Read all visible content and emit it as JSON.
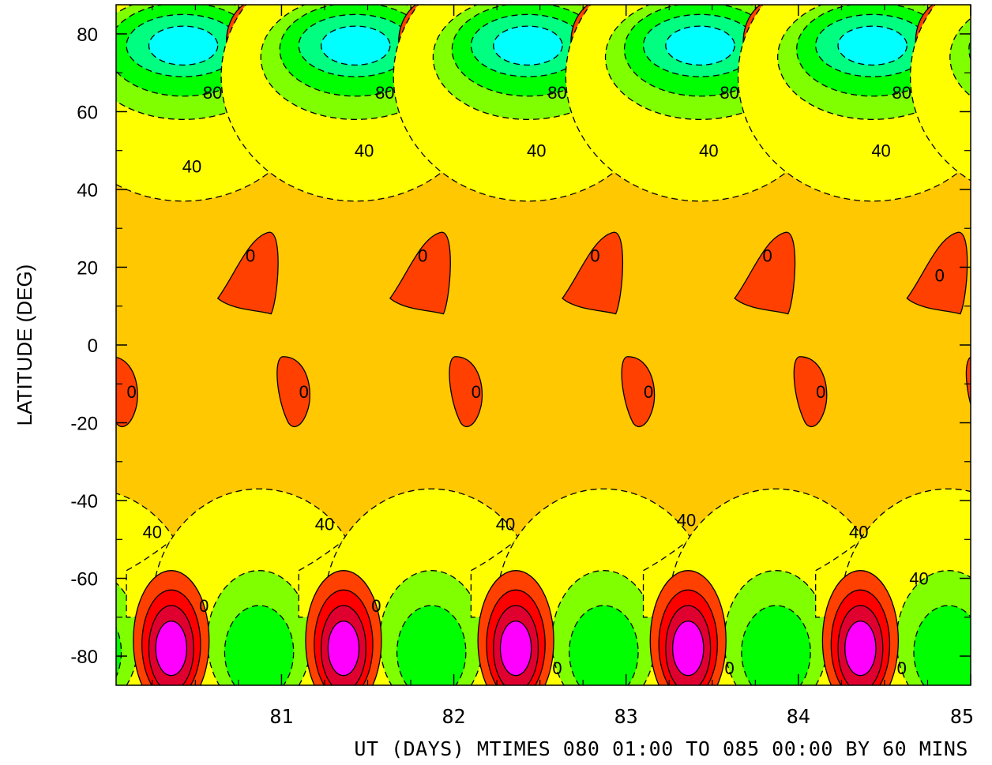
{
  "chart_data": {
    "type": "heatmap",
    "title": "",
    "xlabel": "UT (DAYS) MTIMES 080 01:00 TO 085 00:00 BY   60 MINS",
    "ylabel": "LATITUDE (DEG)",
    "xlim": [
      80.04,
      85.0
    ],
    "ylim": [
      -87.5,
      87.5
    ],
    "x_ticks": [
      {
        "value": 81,
        "label": "81"
      },
      {
        "value": 82,
        "label": "82"
      },
      {
        "value": 83,
        "label": "83"
      },
      {
        "value": 84,
        "label": "84"
      },
      {
        "value": 85,
        "label": "85"
      }
    ],
    "y_ticks": [
      {
        "value": 80,
        "label": "80"
      },
      {
        "value": 60,
        "label": "60"
      },
      {
        "value": 40,
        "label": "40"
      },
      {
        "value": 20,
        "label": "20"
      },
      {
        "value": 0,
        "label": "0"
      },
      {
        "value": -20,
        "label": "-20"
      },
      {
        "value": -40,
        "label": "-40"
      },
      {
        "value": -60,
        "label": "-60"
      },
      {
        "value": -80,
        "label": "-80"
      }
    ],
    "background_color": "#ffc800",
    "colors": {
      "yellow": "#ffff00",
      "light_green": "#80ff00",
      "green": "#00ff00",
      "green2": "#00ff80",
      "cyan": "#00ffff",
      "orange_red": "#ff4000",
      "red": "#ff0000",
      "dark_red": "#e00030",
      "magenta": "#ff00ff"
    },
    "daily_features": [
      {
        "name": "north-negative-cell",
        "x_offset": 0.43,
        "lat": 77,
        "sign": "negative"
      },
      {
        "name": "north-positive-cell",
        "x_offset": 0.88,
        "lat": 78,
        "sign": "positive"
      },
      {
        "name": "south-positive-cell",
        "x_offset": 0.36,
        "lat": -78,
        "sign": "positive"
      },
      {
        "name": "south-negative-cell",
        "x_offset": 0.87,
        "lat": -79,
        "sign": "negative"
      },
      {
        "name": "tropical-north-blob",
        "x_offset": 0.91,
        "lat": 18,
        "sign": "positive"
      },
      {
        "name": "tropical-south-blob",
        "x_offset": 0.07,
        "lat": -12,
        "sign": "positive"
      }
    ],
    "contour_labels": [
      {
        "text": "80",
        "x": 80.6,
        "lat": 65
      },
      {
        "text": "80",
        "x": 81.6,
        "lat": 65
      },
      {
        "text": "80",
        "x": 82.6,
        "lat": 65
      },
      {
        "text": "80",
        "x": 83.6,
        "lat": 65
      },
      {
        "text": "80",
        "x": 84.6,
        "lat": 65
      },
      {
        "text": "40",
        "x": 80.48,
        "lat": 46
      },
      {
        "text": "40",
        "x": 81.48,
        "lat": 50
      },
      {
        "text": "40",
        "x": 82.48,
        "lat": 50
      },
      {
        "text": "40",
        "x": 83.48,
        "lat": 50
      },
      {
        "text": "40",
        "x": 84.48,
        "lat": 50
      },
      {
        "text": "0",
        "x": 80.82,
        "lat": 23
      },
      {
        "text": "0",
        "x": 81.82,
        "lat": 23
      },
      {
        "text": "0",
        "x": 82.82,
        "lat": 23
      },
      {
        "text": "0",
        "x": 83.82,
        "lat": 23
      },
      {
        "text": "0",
        "x": 84.82,
        "lat": 18
      },
      {
        "text": "0",
        "x": 80.13,
        "lat": -12
      },
      {
        "text": "0",
        "x": 81.13,
        "lat": -12
      },
      {
        "text": "0",
        "x": 82.13,
        "lat": -12
      },
      {
        "text": "0",
        "x": 83.13,
        "lat": -12
      },
      {
        "text": "0",
        "x": 84.13,
        "lat": -12
      },
      {
        "text": "40",
        "x": 80.25,
        "lat": -48
      },
      {
        "text": "40",
        "x": 81.25,
        "lat": -46
      },
      {
        "text": "40",
        "x": 82.3,
        "lat": -46
      },
      {
        "text": "40",
        "x": 83.35,
        "lat": -45
      },
      {
        "text": "40",
        "x": 84.35,
        "lat": -48
      },
      {
        "text": "40",
        "x": 84.7,
        "lat": -60
      },
      {
        "text": "0",
        "x": 80.55,
        "lat": -67
      },
      {
        "text": "0",
        "x": 81.55,
        "lat": -67
      },
      {
        "text": "0",
        "x": 82.6,
        "lat": -83
      },
      {
        "text": "0",
        "x": 83.6,
        "lat": -83
      },
      {
        "text": "0",
        "x": 84.6,
        "lat": -83
      }
    ]
  }
}
